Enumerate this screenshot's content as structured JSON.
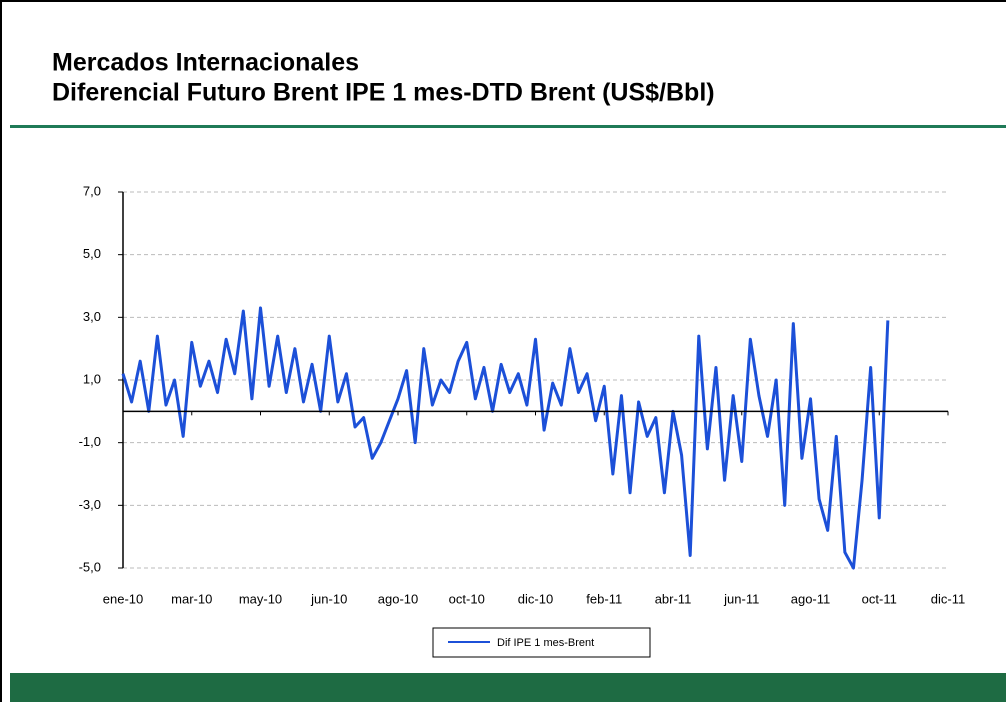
{
  "header": {
    "title_lines": [
      "Mercados Internacionales",
      "Diferencial Futuro Brent IPE 1 mes-DTD Brent (US$/Bbl)"
    ]
  },
  "chart_data": {
    "type": "line",
    "x": [
      0,
      0.25,
      0.5,
      0.75,
      1,
      1.25,
      1.5,
      1.75,
      2,
      2.25,
      2.5,
      2.75,
      3,
      3.25,
      3.5,
      3.75,
      4,
      4.25,
      4.5,
      4.75,
      5,
      5.25,
      5.5,
      5.75,
      6,
      6.25,
      6.5,
      6.75,
      7,
      7.25,
      7.5,
      7.75,
      8,
      8.25,
      8.5,
      8.75,
      9,
      9.25,
      9.5,
      9.75,
      10,
      10.25,
      10.5,
      10.75,
      11,
      11.25,
      11.5,
      11.75,
      12,
      12.25,
      12.5,
      12.75,
      13,
      13.25,
      13.5,
      13.75,
      14,
      14.25,
      14.5,
      14.75,
      15,
      15.25,
      15.5,
      15.75,
      16,
      16.25,
      16.5,
      16.75,
      17,
      17.25,
      17.5,
      17.75,
      18,
      18.25,
      18.5,
      18.75,
      19,
      19.25,
      19.5,
      19.75,
      20,
      20.25,
      20.5,
      20.75,
      21,
      21.25,
      21.5,
      21.75,
      22,
      22.25
    ],
    "series": [
      {
        "name": "Dif IPE 1 mes-Brent",
        "color": "#1c50d8",
        "values": [
          1.2,
          0.3,
          1.6,
          0.0,
          2.4,
          0.2,
          1.0,
          -0.8,
          2.2,
          0.8,
          1.6,
          0.6,
          2.3,
          1.2,
          3.2,
          0.4,
          3.3,
          0.8,
          2.4,
          0.6,
          2.0,
          0.3,
          1.5,
          0.0,
          2.4,
          0.3,
          1.2,
          -0.5,
          -0.2,
          -1.5,
          -1.0,
          -0.3,
          0.4,
          1.3,
          -1.0,
          2.0,
          0.2,
          1.0,
          0.6,
          1.6,
          2.2,
          0.4,
          1.4,
          0.0,
          1.5,
          0.6,
          1.2,
          0.2,
          2.3,
          -0.6,
          0.9,
          0.2,
          2.0,
          0.6,
          1.2,
          -0.3,
          0.8,
          -2.0,
          0.5,
          -2.6,
          0.3,
          -0.8,
          -0.2,
          -2.6,
          0.0,
          -1.4,
          -4.6,
          2.4,
          -1.2,
          1.4,
          -2.2,
          0.5,
          -1.6,
          2.3,
          0.5,
          -0.8,
          1.0,
          -3.0,
          2.8,
          -1.5,
          0.4,
          -2.8,
          -3.8,
          -0.8,
          -4.5,
          -5.0,
          -2.2,
          1.4,
          -3.4,
          2.9
        ]
      }
    ],
    "xlim": [
      0,
      24
    ],
    "xticks": [
      {
        "value": 0,
        "label": "ene-10"
      },
      {
        "value": 2,
        "label": "mar-10"
      },
      {
        "value": 4,
        "label": "may-10"
      },
      {
        "value": 6,
        "label": "jun-10"
      },
      {
        "value": 8,
        "label": "ago-10"
      },
      {
        "value": 10,
        "label": "oct-10"
      },
      {
        "value": 12,
        "label": "dic-10"
      },
      {
        "value": 14,
        "label": "feb-11"
      },
      {
        "value": 16,
        "label": "abr-11"
      },
      {
        "value": 18,
        "label": "jun-11"
      },
      {
        "value": 20,
        "label": "ago-11"
      },
      {
        "value": 22,
        "label": "oct-11"
      },
      {
        "value": 24,
        "label": "dic-11"
      }
    ],
    "ylim": [
      -5,
      7
    ],
    "yticks": [
      {
        "value": -5,
        "label": "-5,0"
      },
      {
        "value": -3,
        "label": "-3,0"
      },
      {
        "value": -1,
        "label": "-1,0"
      },
      {
        "value": 1,
        "label": "1,0"
      },
      {
        "value": 3,
        "label": "3,0"
      },
      {
        "value": 5,
        "label": "5,0"
      },
      {
        "value": 7,
        "label": "7,0"
      }
    ],
    "reference_line": 0,
    "grid": true,
    "legend": "bottom"
  }
}
